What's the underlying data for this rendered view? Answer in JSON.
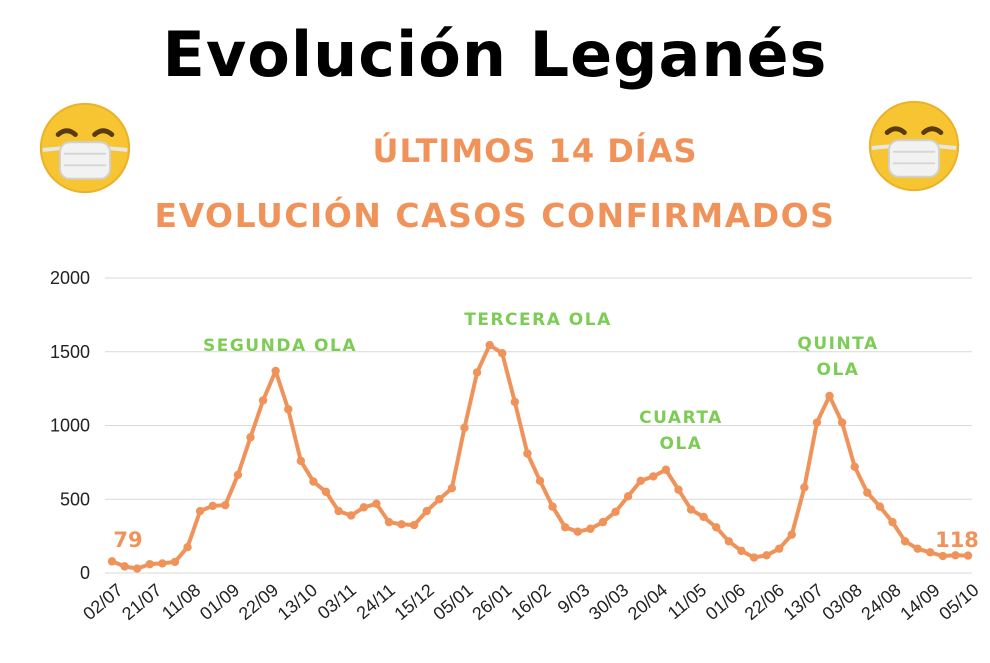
{
  "header": {
    "title": "Evolución Leganés",
    "subtitle1": "ÚLTIMOS 14 DÍAS",
    "subtitle2": "EVOLUCIÓN CASOS CONFIRMADOS"
  },
  "icons": {
    "left": "face-with-mask-icon",
    "right": "face-with-mask-icon"
  },
  "colors": {
    "line": "#f0935a",
    "annotation": "#7dcc55",
    "grid": "#d9d9d9"
  },
  "chart_data": {
    "type": "line",
    "title": "Evolución Leganés",
    "subtitle": "ÚLTIMOS 14 DÍAS",
    "ylim": [
      0,
      2000
    ],
    "yticks": [
      0,
      500,
      1000,
      1500,
      2000
    ],
    "grid": true,
    "xticks": [
      "02/07",
      "21/07",
      "11/08",
      "01/09",
      "22/09",
      "13/10",
      "03/11",
      "24/11",
      "15/12",
      "05/01",
      "26/01",
      "16/02",
      "9/03",
      "30/03",
      "20/04",
      "11/05",
      "01/06",
      "22/06",
      "13/07",
      "03/08",
      "24/08",
      "14/09",
      "05/10"
    ],
    "series": [
      {
        "values": [
          79,
          45,
          30,
          60,
          65,
          75,
          175,
          420,
          455,
          460,
          665,
          920,
          1170,
          1370,
          1110,
          760,
          620,
          550,
          420,
          390,
          445,
          470,
          345,
          330,
          325,
          420,
          500,
          575,
          985,
          1360,
          1545,
          1490,
          1160,
          810,
          625,
          450,
          310,
          280,
          300,
          345,
          415,
          520,
          625,
          655,
          700,
          565,
          430,
          380,
          310,
          215,
          150,
          105,
          120,
          165,
          260,
          580,
          1020,
          1200,
          1020,
          720,
          545,
          450,
          345,
          215,
          165,
          140,
          115,
          120,
          118
        ]
      }
    ],
    "annotations": [
      {
        "text": "SEGUNDA OLA",
        "lines": [
          "SEGUNDA OLA"
        ]
      },
      {
        "text": "TERCERA OLA",
        "lines": [
          "TERCERA OLA"
        ]
      },
      {
        "text": "CUARTA OLA",
        "lines": [
          "CUARTA",
          "OLA"
        ]
      },
      {
        "text": "QUINTA OLA",
        "lines": [
          "QUINTA",
          "OLA"
        ]
      }
    ],
    "data_labels": [
      {
        "text": "79"
      },
      {
        "text": "118"
      }
    ]
  }
}
